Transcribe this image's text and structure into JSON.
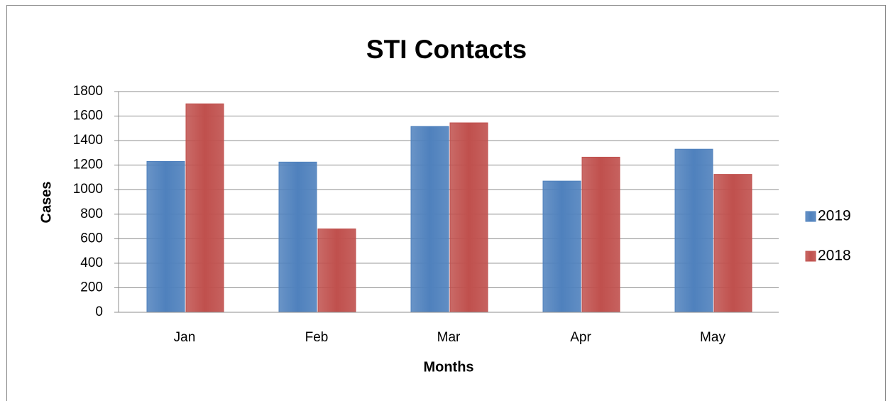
{
  "chart_data": {
    "type": "bar",
    "title": "STI Contacts",
    "x_label": "Months",
    "y_label": "Cases",
    "categories": [
      "Jan",
      "Feb",
      "Mar",
      "Apr",
      "May"
    ],
    "series": [
      {
        "name": "2019",
        "color": "#4f81bd",
        "values": [
          1230,
          1225,
          1515,
          1070,
          1330
        ]
      },
      {
        "name": "2018",
        "color": "#c0504d",
        "values": [
          1700,
          680,
          1545,
          1265,
          1125
        ]
      }
    ],
    "ylim": [
      0,
      1800
    ],
    "yticks": [
      0,
      200,
      400,
      600,
      800,
      1000,
      1200,
      1400,
      1600,
      1800
    ],
    "grid": true,
    "legend": "right"
  }
}
